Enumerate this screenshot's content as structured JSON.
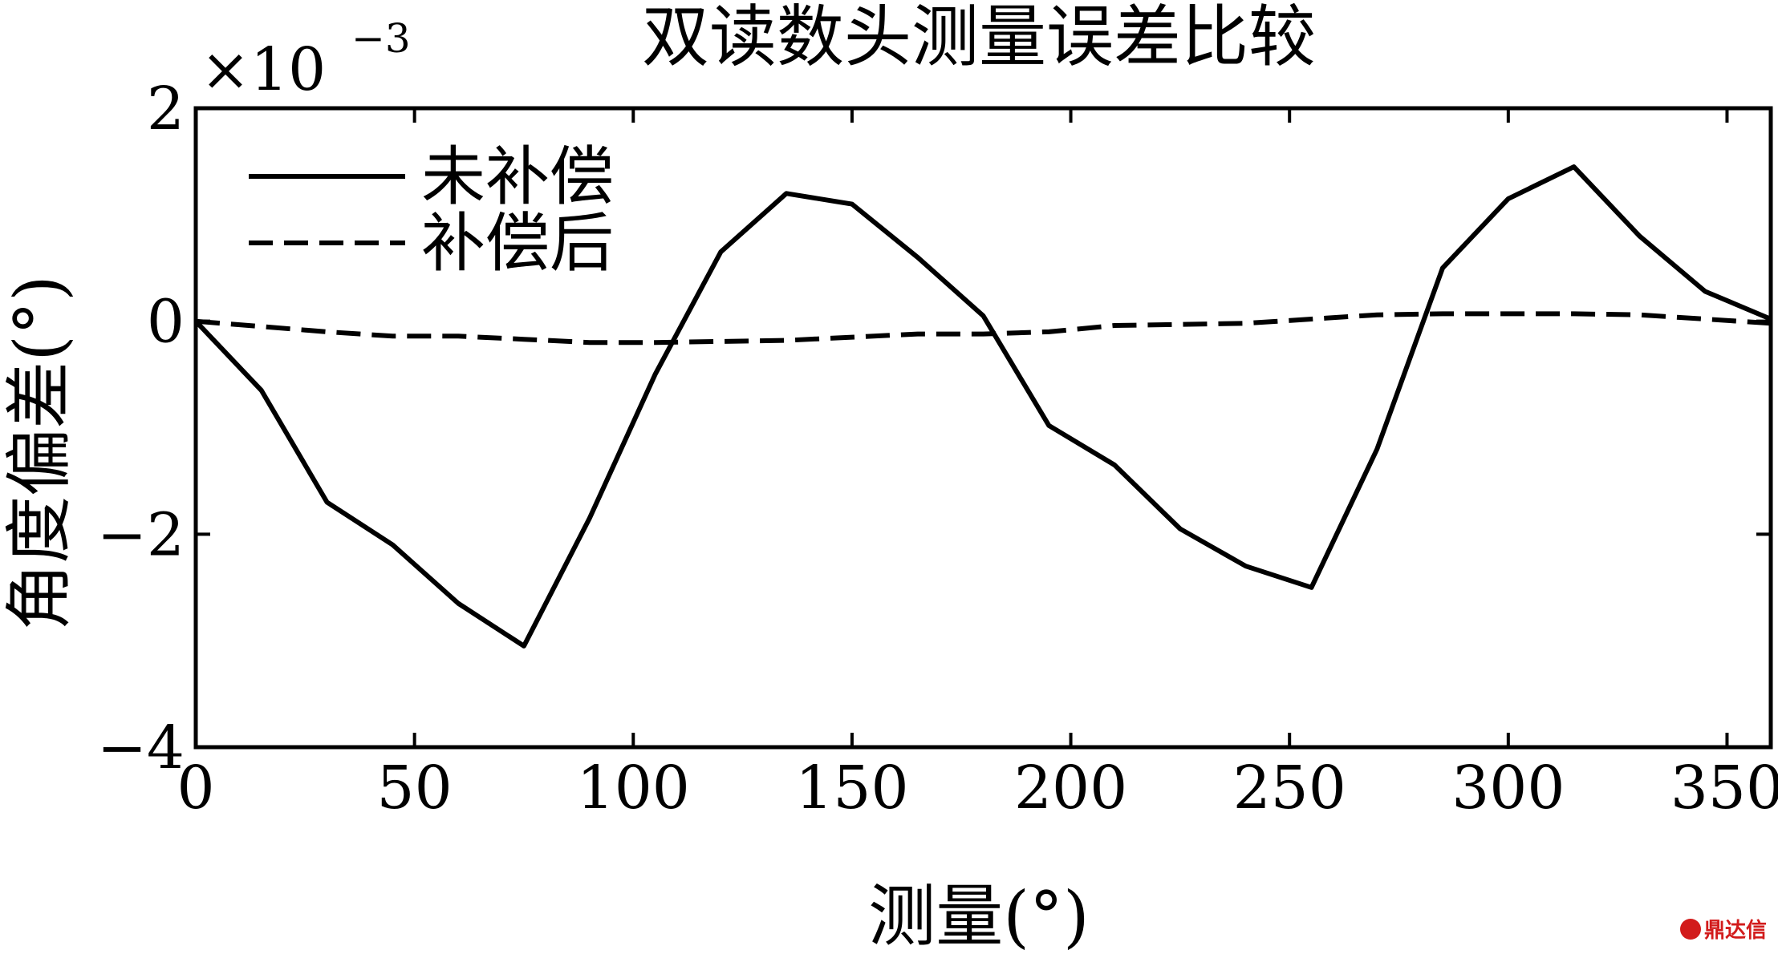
{
  "chart_data": {
    "type": "line",
    "title": "双读数头测量误差比较",
    "xlabel": "测量(°)",
    "ylabel": "角度偏差(°)",
    "y_multiplier": "×10",
    "y_exponent": "−3",
    "xlim": [
      0,
      360
    ],
    "ylim": [
      -4,
      2
    ],
    "xticks": [
      0,
      50,
      100,
      150,
      200,
      250,
      300,
      350
    ],
    "xtick_labels": [
      "0",
      "50",
      "100",
      "150",
      "200",
      "250",
      "300",
      "350"
    ],
    "yticks": [
      2,
      0,
      -2,
      -4
    ],
    "ytick_labels": [
      "2",
      "0",
      "−2",
      "−4"
    ],
    "grid": false,
    "legend_position": "top-left",
    "series": [
      {
        "name": "未补偿",
        "style": "solid",
        "x": [
          0,
          15,
          30,
          45,
          60,
          75,
          90,
          105,
          120,
          135,
          150,
          165,
          180,
          195,
          210,
          225,
          240,
          255,
          270,
          285,
          300,
          315,
          330,
          345,
          360
        ],
        "y": [
          0,
          -0.65,
          -1.7,
          -2.1,
          -2.65,
          -3.05,
          -1.85,
          -0.5,
          0.65,
          1.2,
          1.1,
          0.6,
          0.05,
          -0.98,
          -1.35,
          -1.95,
          -2.3,
          -2.5,
          -1.2,
          0.5,
          1.15,
          1.45,
          0.8,
          0.28,
          0.02
        ],
        "color": "#000000"
      },
      {
        "name": "补偿后",
        "style": "dashed",
        "x": [
          0,
          15,
          30,
          45,
          60,
          75,
          90,
          105,
          120,
          135,
          150,
          165,
          180,
          195,
          210,
          225,
          240,
          255,
          270,
          285,
          300,
          315,
          330,
          345,
          360
        ],
        "y": [
          0,
          -0.05,
          -0.1,
          -0.14,
          -0.14,
          -0.17,
          -0.2,
          -0.2,
          -0.19,
          -0.18,
          -0.15,
          -0.12,
          -0.12,
          -0.1,
          -0.04,
          -0.03,
          -0.02,
          0.02,
          0.06,
          0.07,
          0.07,
          0.07,
          0.06,
          0.02,
          -0.02
        ],
        "color": "#000000"
      }
    ]
  },
  "watermark": {
    "text": "鼎达信",
    "color": "#d21b1b"
  }
}
